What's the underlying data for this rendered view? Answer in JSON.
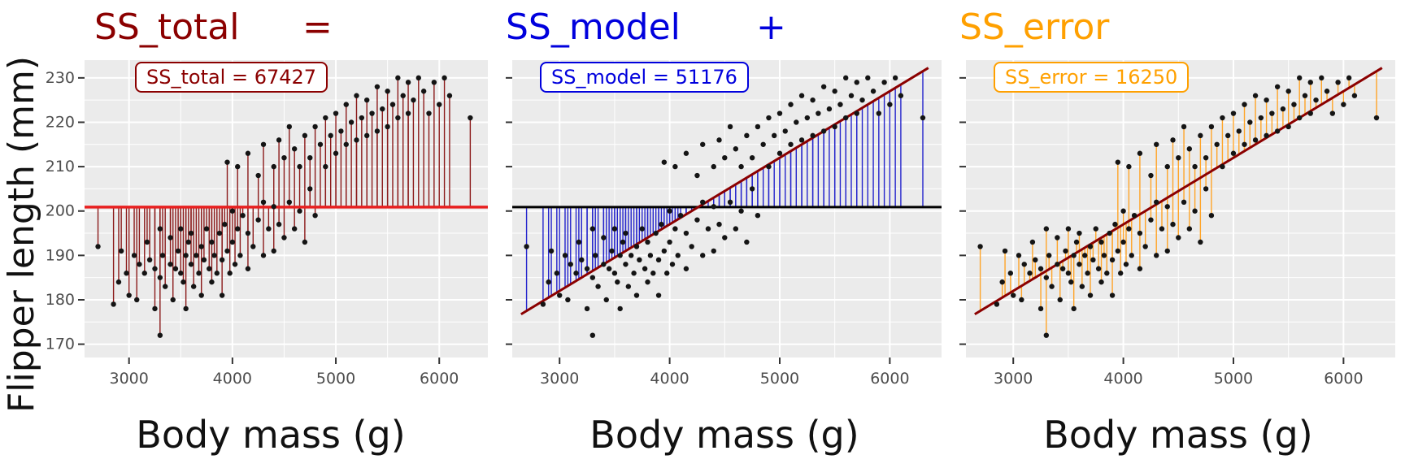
{
  "figure": {
    "y_axis_label": "Flipper length (mm)",
    "x_axis_label": "Body mass (g)",
    "panels": [
      {
        "id": "total",
        "title": "SS_total",
        "operator": "=",
        "annotation": "SS_total = 67427",
        "color": "#8B0000",
        "segment_color": "#8B1A1A"
      },
      {
        "id": "model",
        "title": "SS_model",
        "operator": "+",
        "annotation": "SS_model = 51176",
        "color": "#0000DD",
        "segment_color": "#2424CC"
      },
      {
        "id": "error",
        "title": "SS_error",
        "operator": "",
        "annotation": "SS_error = 16250",
        "color": "#FFA000",
        "segment_color": "#FFA428"
      }
    ]
  },
  "chart_data": {
    "type": "scatter",
    "title": "Sum of squares decomposition: SS_total = SS_model + SS_error",
    "xlabel": "Body mass (g)",
    "ylabel": "Flipper length (mm)",
    "xlim": [
      2570,
      6470
    ],
    "ylim": [
      167,
      234
    ],
    "x_ticks": [
      3000,
      4000,
      5000,
      6000
    ],
    "x_minor_ticks": [
      3500,
      4500,
      5500
    ],
    "y_ticks": [
      170,
      180,
      190,
      200,
      210,
      220,
      230
    ],
    "y_minor_ticks": [
      175,
      185,
      195,
      205,
      215,
      225
    ],
    "ss_total": 67427,
    "ss_model": 51176,
    "ss_error": 16250,
    "mean_flipper": 200.9,
    "regression": {
      "intercept": 137,
      "slope": 0.015
    },
    "styles": {
      "panel_bg": "#EBEBEB",
      "grid": "#FFFFFF",
      "point_color": "#141414",
      "mean_line": "#E82020",
      "model_mean_line": "#000000",
      "regression_line": "#8B0000",
      "tick_color": "#333333",
      "tick_label_color": "#4D4D4D"
    },
    "points": [
      [
        2700,
        192
      ],
      [
        2850,
        179
      ],
      [
        2900,
        184
      ],
      [
        2925,
        191
      ],
      [
        2975,
        186
      ],
      [
        3000,
        181
      ],
      [
        3050,
        190
      ],
      [
        3075,
        180
      ],
      [
        3100,
        188
      ],
      [
        3150,
        186
      ],
      [
        3175,
        193
      ],
      [
        3200,
        189
      ],
      [
        3250,
        178
      ],
      [
        3250,
        187
      ],
      [
        3300,
        172
      ],
      [
        3300,
        185
      ],
      [
        3300,
        196
      ],
      [
        3325,
        190
      ],
      [
        3350,
        183
      ],
      [
        3400,
        188
      ],
      [
        3400,
        194
      ],
      [
        3425,
        180
      ],
      [
        3450,
        187
      ],
      [
        3475,
        191
      ],
      [
        3500,
        186
      ],
      [
        3500,
        196
      ],
      [
        3525,
        184
      ],
      [
        3550,
        178
      ],
      [
        3550,
        190
      ],
      [
        3575,
        193
      ],
      [
        3600,
        188
      ],
      [
        3600,
        195
      ],
      [
        3625,
        183
      ],
      [
        3650,
        190
      ],
      [
        3675,
        186
      ],
      [
        3700,
        181
      ],
      [
        3700,
        192
      ],
      [
        3725,
        189
      ],
      [
        3750,
        196
      ],
      [
        3775,
        187
      ],
      [
        3800,
        184
      ],
      [
        3800,
        193
      ],
      [
        3825,
        190
      ],
      [
        3850,
        186
      ],
      [
        3875,
        195
      ],
      [
        3900,
        181
      ],
      [
        3900,
        189
      ],
      [
        3925,
        197
      ],
      [
        3950,
        191
      ],
      [
        3950,
        211
      ],
      [
        3975,
        186
      ],
      [
        4000,
        193
      ],
      [
        4000,
        200
      ],
      [
        4025,
        188
      ],
      [
        4050,
        196
      ],
      [
        4050,
        210
      ],
      [
        4075,
        190
      ],
      [
        4100,
        199
      ],
      [
        4150,
        187
      ],
      [
        4150,
        195
      ],
      [
        4150,
        213
      ],
      [
        4200,
        192
      ],
      [
        4250,
        198
      ],
      [
        4250,
        208
      ],
      [
        4300,
        190
      ],
      [
        4300,
        202
      ],
      [
        4300,
        215
      ],
      [
        4350,
        196
      ],
      [
        4400,
        191
      ],
      [
        4400,
        201
      ],
      [
        4400,
        210
      ],
      [
        4450,
        197
      ],
      [
        4450,
        216
      ],
      [
        4500,
        194
      ],
      [
        4500,
        212
      ],
      [
        4550,
        202
      ],
      [
        4550,
        219
      ],
      [
        4600,
        196
      ],
      [
        4600,
        214
      ],
      [
        4650,
        200
      ],
      [
        4650,
        210
      ],
      [
        4700,
        193
      ],
      [
        4700,
        217
      ],
      [
        4750,
        205
      ],
      [
        4750,
        212
      ],
      [
        4800,
        199
      ],
      [
        4800,
        219
      ],
      [
        4850,
        215
      ],
      [
        4900,
        210
      ],
      [
        4900,
        221
      ],
      [
        4950,
        217
      ],
      [
        5000,
        213
      ],
      [
        5000,
        222
      ],
      [
        5050,
        218
      ],
      [
        5100,
        215
      ],
      [
        5100,
        224
      ],
      [
        5150,
        220
      ],
      [
        5200,
        216
      ],
      [
        5200,
        226
      ],
      [
        5250,
        221
      ],
      [
        5300,
        217
      ],
      [
        5300,
        225
      ],
      [
        5350,
        222
      ],
      [
        5400,
        218
      ],
      [
        5400,
        228
      ],
      [
        5450,
        223
      ],
      [
        5500,
        219
      ],
      [
        5500,
        227
      ],
      [
        5550,
        224
      ],
      [
        5600,
        221
      ],
      [
        5600,
        230
      ],
      [
        5650,
        226
      ],
      [
        5700,
        222
      ],
      [
        5700,
        229
      ],
      [
        5750,
        225
      ],
      [
        5800,
        230
      ],
      [
        5850,
        227
      ],
      [
        5900,
        222
      ],
      [
        5950,
        229
      ],
      [
        6000,
        224
      ],
      [
        6050,
        230
      ],
      [
        6100,
        226
      ],
      [
        6300,
        221
      ]
    ]
  }
}
